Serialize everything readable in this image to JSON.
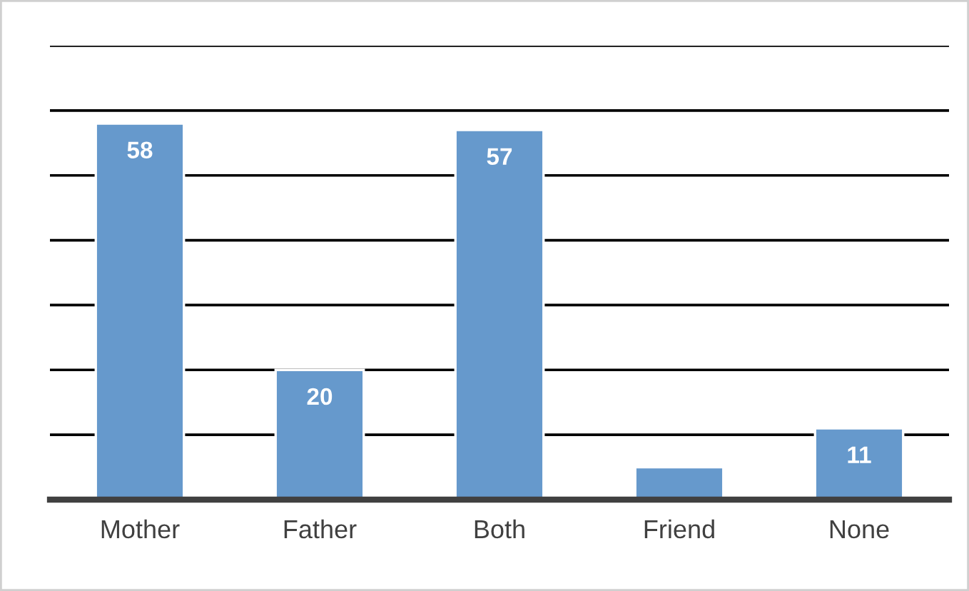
{
  "chart_data": {
    "type": "bar",
    "categories": [
      "Mother",
      "Father",
      "Both",
      "Friend",
      "None"
    ],
    "values": [
      58,
      20,
      57,
      5,
      11
    ],
    "value_labels": [
      "58",
      "20",
      "57",
      null,
      "11"
    ],
    "color": "#6699cc",
    "ylim": [
      0,
      70
    ],
    "yticks": [
      {
        "value": 0,
        "label": null
      },
      {
        "value": 10,
        "label": null
      },
      {
        "value": 20,
        "label": null
      },
      {
        "value": 30,
        "label": null
      },
      {
        "value": 40,
        "label": null
      },
      {
        "value": 50,
        "label": null
      },
      {
        "value": 60,
        "label": null
      },
      {
        "value": 70,
        "label": null
      }
    ],
    "grid": "y",
    "tick_labels": "x"
  }
}
